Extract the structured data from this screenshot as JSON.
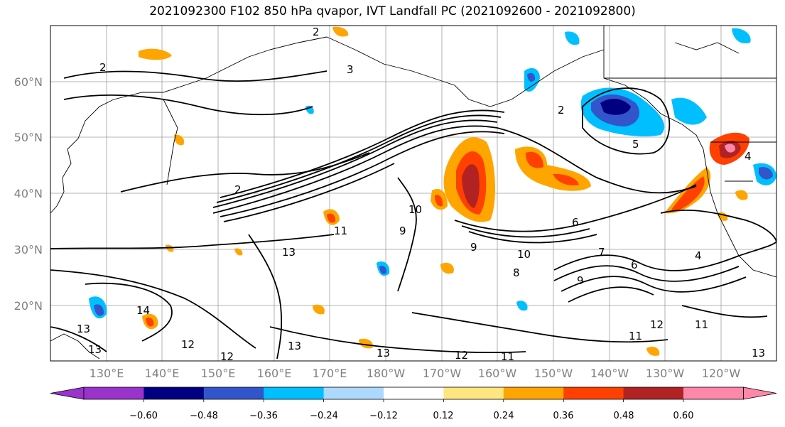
{
  "title": "2021092300 F102 850 hPa qvapor, IVT Landfall PC (2021092600 - 2021092800)",
  "lat_labels": [
    "60°N",
    "50°N",
    "40°N",
    "30°N",
    "20°N"
  ],
  "lon_labels": [
    "130°E",
    "140°E",
    "150°E",
    "160°E",
    "170°E",
    "180°W",
    "170°W",
    "160°W",
    "150°W",
    "140°W",
    "130°W",
    "120°W"
  ],
  "colorbar": {
    "colors": [
      "#9933cc",
      "#000080",
      "#3355cc",
      "#00bfff",
      "#add8ff",
      "#ffffff",
      "#ffe680",
      "#ffa500",
      "#ff4000",
      "#b22222",
      "#ff88aa"
    ],
    "tick_labels": [
      "−0.60",
      "−0.48",
      "−0.36",
      "−0.24",
      "−0.12",
      "0.12",
      "0.24",
      "0.36",
      "0.48",
      "0.60"
    ]
  },
  "contour_labels": [
    "2",
    "3",
    "2",
    "2",
    "2",
    "5",
    "4",
    "10",
    "9",
    "10",
    "9",
    "6",
    "4",
    "9",
    "8",
    "11",
    "13",
    "14",
    "13",
    "13",
    "12",
    "12",
    "13",
    "13",
    "12",
    "11",
    "11",
    "12",
    "11",
    "13",
    "6",
    "7"
  ]
}
